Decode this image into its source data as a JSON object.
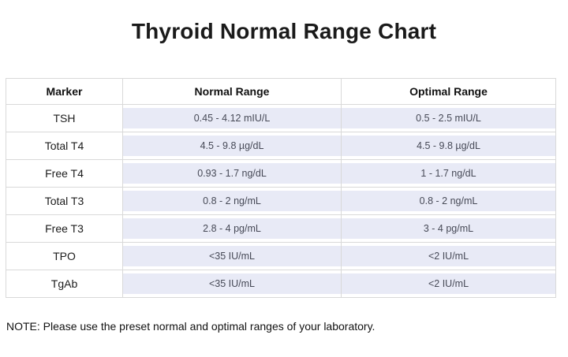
{
  "title": "Thyroid Normal Range Chart",
  "note": "NOTE: Please use the preset normal and optimal ranges of your laboratory.",
  "colors": {
    "highlight_background": "#e8eaf6",
    "highlight_text": "#474a57",
    "table_border": "#d9d9d9",
    "text": "#1a1a1a"
  },
  "chart_data": {
    "type": "table",
    "title": "Thyroid Normal Range Chart",
    "columns": [
      "Marker",
      "Normal Range",
      "Optimal Range"
    ],
    "rows": [
      [
        "TSH",
        "0.45 - 4.12 mIU/L",
        "0.5 - 2.5 mIU/L"
      ],
      [
        "Total T4",
        "4.5 - 9.8 µg/dL",
        "4.5 - 9.8 µg/dL"
      ],
      [
        "Free T4",
        "0.93 - 1.7 ng/dL",
        "1 - 1.7 ng/dL"
      ],
      [
        "Total T3",
        "0.8 - 2 ng/mL",
        "0.8 - 2 ng/mL"
      ],
      [
        "Free T3",
        "2.8 - 4 pg/mL",
        "3 - 4 pg/mL"
      ],
      [
        "TPO",
        "<35 IU/mL",
        "<2 IU/mL"
      ],
      [
        "TgAb",
        "<35 IU/mL",
        "<2 IU/mL"
      ]
    ],
    "layout": {
      "legend": "none",
      "grid": "table-borders",
      "value_cells_highlighted": true
    }
  }
}
